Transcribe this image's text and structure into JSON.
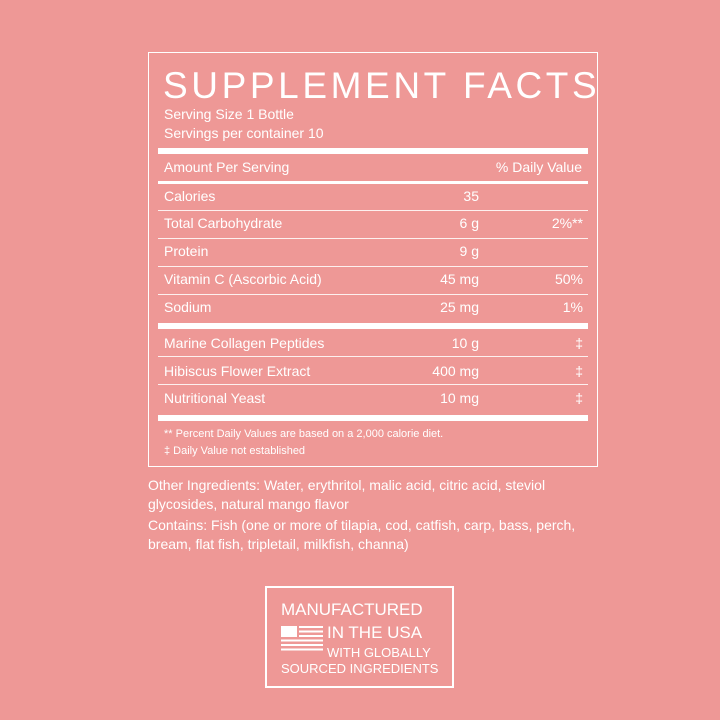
{
  "label": {
    "title": "SUPPLEMENT FACTS",
    "serving_size": "Serving Size 1 Bottle",
    "servings_per_container": "Servings per container 10",
    "header_left": "Amount Per Serving",
    "header_right": "% Daily Value",
    "nutrients": [
      {
        "name": "Calories",
        "amount": "35",
        "dv": ""
      },
      {
        "name": "Total Carbohydrate",
        "amount": "6 g",
        "dv": "2%**"
      },
      {
        "name": "Protein",
        "amount": "9 g",
        "dv": ""
      },
      {
        "name": "Vitamin C (Ascorbic Acid)",
        "amount": "45 mg",
        "dv": "50%"
      },
      {
        "name": "Sodium",
        "amount": "25 mg",
        "dv": "1%"
      }
    ],
    "other": [
      {
        "name": "Marine Collagen Peptides",
        "amount": "10 g",
        "dv": "‡"
      },
      {
        "name": "Hibiscus Flower Extract",
        "amount": "400 mg",
        "dv": "‡"
      },
      {
        "name": "Nutritional Yeast",
        "amount": "10 mg",
        "dv": "‡"
      }
    ],
    "footnote1": "** Percent Daily Values are based on a 2,000 calorie diet.",
    "footnote2": "‡  Daily Value not established"
  },
  "other_ingredients": "Other Ingredients: Water, erythritol, malic acid, citric acid, steviol glycosides, natural mango flavor",
  "contains": "Contains: Fish (one or more of tilapia, cod, catfish, carp, bass, perch, bream, flat fish, tripletail, milkfish, channa)",
  "badge": {
    "line1": "MANUFACTURED",
    "line2": "IN THE USA",
    "line3": "WITH GLOBALLY",
    "line4": "SOURCED INGREDIENTS",
    "icon": "us-flag-icon"
  },
  "colors": {
    "background": "#ee9896",
    "foreground": "#ffffff"
  }
}
